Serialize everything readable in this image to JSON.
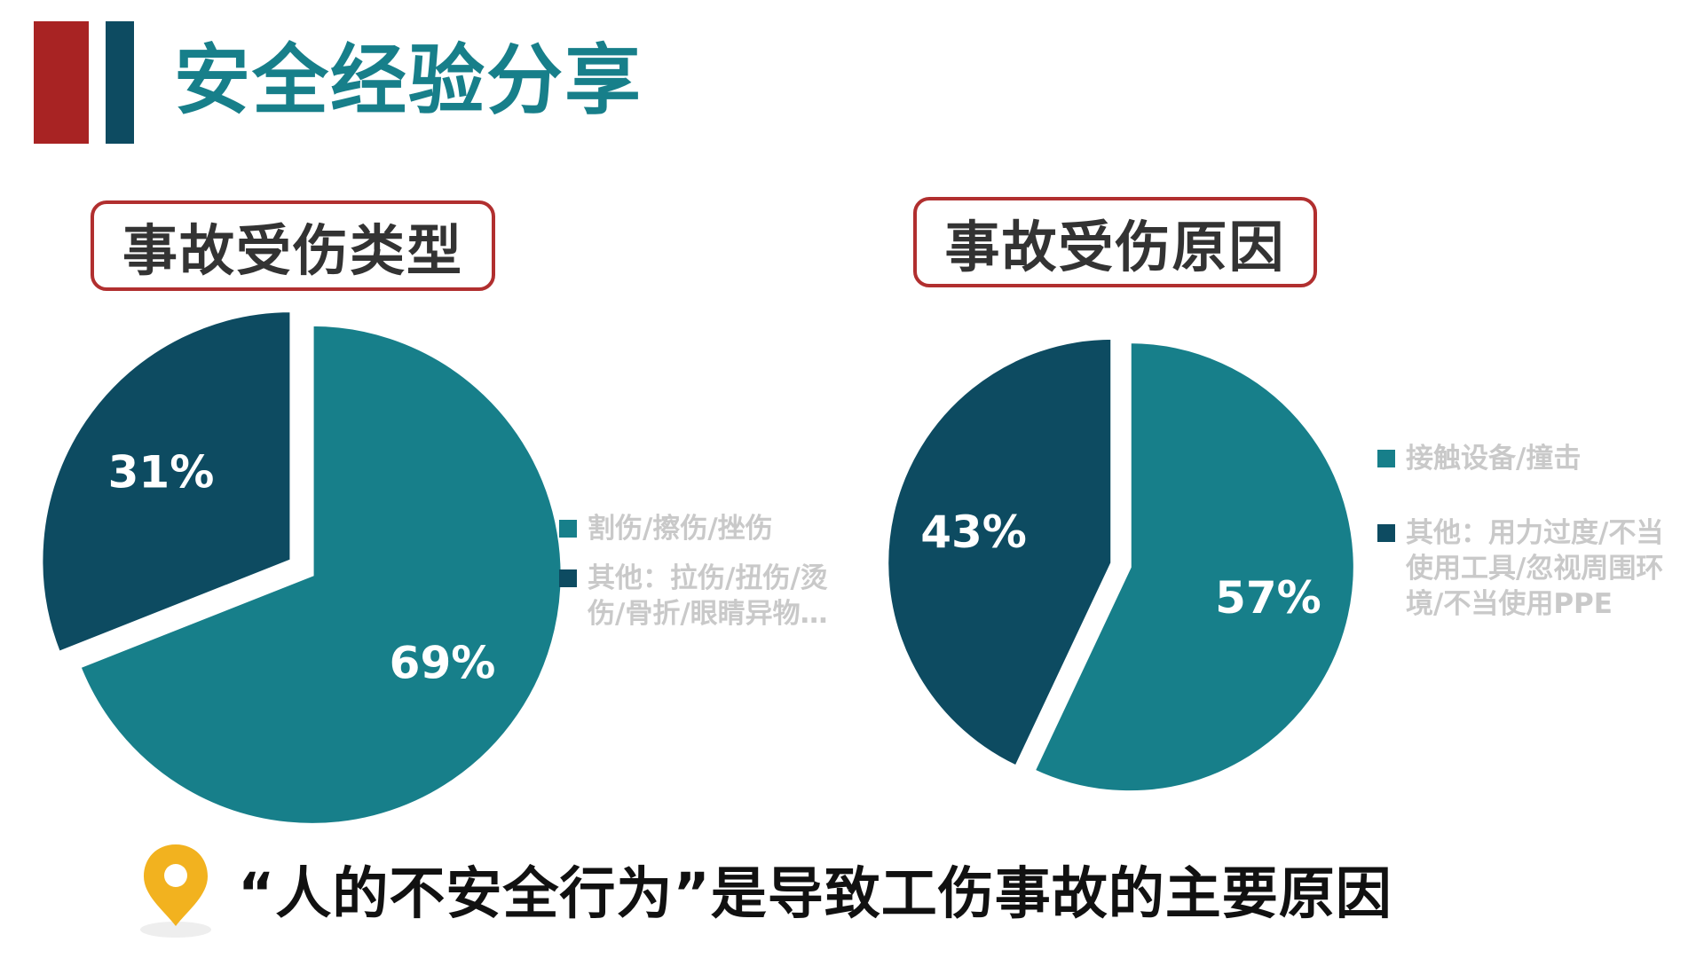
{
  "page": {
    "title": "安全经验分享",
    "conclusion": "“人的不安全行为”是导致工伤事故的主要原因"
  },
  "colors": {
    "teal": "#177f8a",
    "navy": "#0d4b61",
    "red": "#a82323",
    "legend_text": "#c9c9c9"
  },
  "icons": {
    "conclusion_marker": "location-pin-icon"
  },
  "chart_data": [
    {
      "type": "pie",
      "title": "事故受伤类型",
      "slices": [
        {
          "label": "割伤/擦伤/挫伤",
          "value": 69,
          "display": "69%",
          "color": "#177f8a"
        },
        {
          "label": "其他：拉伤/扭伤/烫伤/骨折/眼睛异物…",
          "value": 31,
          "display": "31%",
          "color": "#0d4b61"
        }
      ],
      "legend_position": "right"
    },
    {
      "type": "pie",
      "title": "事故受伤原因",
      "slices": [
        {
          "label": "接触设备/撞击",
          "value": 57,
          "display": "57%",
          "color": "#177f8a"
        },
        {
          "label": "其他：用力过度/不当使用工具/忽视周围环境/不当使用PPE",
          "value": 43,
          "display": "43%",
          "color": "#0d4b61"
        }
      ],
      "legend_position": "right"
    }
  ]
}
